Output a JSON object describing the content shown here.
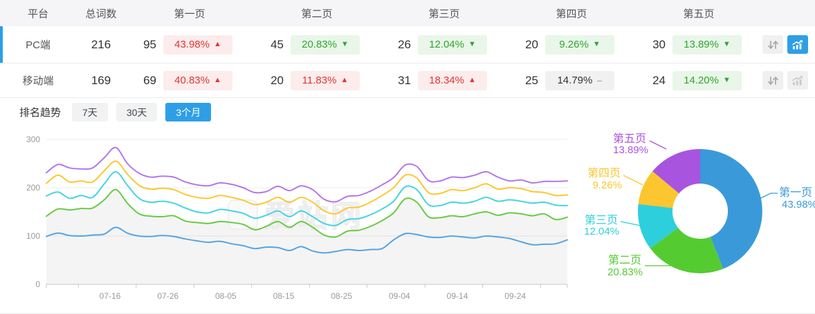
{
  "accent_color": "#2e9fe6",
  "table": {
    "columns": [
      "平台",
      "总词数",
      "第一页",
      "第二页",
      "第三页",
      "第四页",
      "第五页"
    ],
    "rows": [
      {
        "platform": "PC端",
        "total": "216",
        "selected": true,
        "trend_active": true,
        "pages": [
          {
            "count": "95",
            "pct": "43.98%",
            "dir": "up"
          },
          {
            "count": "45",
            "pct": "20.83%",
            "dir": "down"
          },
          {
            "count": "26",
            "pct": "12.04%",
            "dir": "down"
          },
          {
            "count": "20",
            "pct": "9.26%",
            "dir": "down"
          },
          {
            "count": "30",
            "pct": "13.89%",
            "dir": "down"
          }
        ]
      },
      {
        "platform": "移动端",
        "total": "169",
        "selected": false,
        "trend_active": false,
        "pages": [
          {
            "count": "69",
            "pct": "40.83%",
            "dir": "up"
          },
          {
            "count": "20",
            "pct": "11.83%",
            "dir": "up"
          },
          {
            "count": "31",
            "pct": "18.34%",
            "dir": "up"
          },
          {
            "count": "25",
            "pct": "14.79%",
            "dir": "flat"
          },
          {
            "count": "24",
            "pct": "14.20%",
            "dir": "down"
          }
        ]
      }
    ]
  },
  "trend": {
    "label": "排名趋势",
    "tabs": [
      {
        "label": "7天",
        "active": false
      },
      {
        "label": "30天",
        "active": false
      },
      {
        "label": "3个月",
        "active": true
      }
    ]
  },
  "watermark": "爱站网",
  "chart_data": [
    {
      "type": "line",
      "title": "排名趋势（3个月）",
      "x_tick_labels": [
        "07-16",
        "07-26",
        "08-05",
        "08-15",
        "08-25",
        "09-04",
        "09-14",
        "09-24"
      ],
      "x_tick_days": [
        11,
        21,
        31,
        41,
        51,
        61,
        71,
        81
      ],
      "day_span": [
        0,
        90
      ],
      "sample_day_step": 2,
      "ylim": [
        0,
        300
      ],
      "y_ticks": [
        0,
        100,
        200,
        300
      ],
      "grid": true,
      "legend_position": "none",
      "series": [
        {
          "name": "第一页",
          "color": "#55a5e3",
          "values": [
            99,
            106,
            101,
            100,
            102,
            104,
            118,
            106,
            100,
            99,
            101,
            99,
            94,
            90,
            87,
            89,
            84,
            80,
            74,
            77,
            76,
            70,
            78,
            69,
            65,
            68,
            72,
            70,
            72,
            74,
            92,
            105,
            103,
            98,
            97,
            100,
            98,
            96,
            100,
            98,
            95,
            88,
            82,
            83,
            84,
            92
          ]
        },
        {
          "name": "第二页",
          "color": "#66cc44",
          "area_fill": "rgba(0,0,0,0.045)",
          "values": [
            141,
            156,
            154,
            157,
            158,
            175,
            196,
            168,
            146,
            141,
            140,
            142,
            131,
            128,
            126,
            130,
            128,
            124,
            113,
            120,
            130,
            118,
            130,
            118,
            102,
            98,
            110,
            112,
            120,
            132,
            148,
            177,
            170,
            140,
            138,
            142,
            140,
            146,
            150,
            143,
            148,
            146,
            142,
            146,
            134,
            139
          ]
        },
        {
          "name": "第三页",
          "color": "#45d4e2",
          "values": [
            183,
            191,
            178,
            184,
            180,
            208,
            233,
            205,
            178,
            170,
            172,
            168,
            158,
            150,
            148,
            155,
            152,
            147,
            137,
            143,
            152,
            140,
            152,
            140,
            126,
            122,
            134,
            136,
            144,
            156,
            172,
            202,
            196,
            165,
            163,
            170,
            168,
            172,
            180,
            172,
            175,
            172,
            168,
            170,
            164,
            163
          ]
        },
        {
          "name": "第四页",
          "color": "#fcc733",
          "values": [
            209,
            226,
            212,
            214,
            212,
            235,
            255,
            228,
            205,
            197,
            199,
            196,
            186,
            180,
            178,
            184,
            180,
            174,
            165,
            170,
            180,
            170,
            180,
            170,
            152,
            146,
            158,
            160,
            170,
            184,
            200,
            226,
            220,
            190,
            188,
            196,
            194,
            200,
            208,
            197,
            200,
            198,
            192,
            190,
            184,
            185
          ]
        },
        {
          "name": "第五页",
          "color": "#b477e8",
          "values": [
            231,
            248,
            241,
            239,
            241,
            262,
            283,
            250,
            230,
            222,
            224,
            222,
            212,
            206,
            204,
            210,
            207,
            200,
            190,
            192,
            203,
            194,
            204,
            196,
            176,
            171,
            182,
            184,
            193,
            206,
            221,
            247,
            244,
            215,
            214,
            222,
            221,
            226,
            233,
            222,
            214,
            216,
            210,
            213,
            213,
            214
          ]
        }
      ]
    },
    {
      "type": "donut",
      "start_angle": "top",
      "direction": "clockwise",
      "label_format": "name + percent, outside leader lines",
      "series": [
        {
          "name": "第一页",
          "value": 43.98,
          "pct_label": "43.98%",
          "color": "#3a9ad9"
        },
        {
          "name": "第二页",
          "value": 20.83,
          "pct_label": "20.83%",
          "color": "#55cb32"
        },
        {
          "name": "第三页",
          "value": 12.04,
          "pct_label": "12.04%",
          "color": "#2dcfdc"
        },
        {
          "name": "第四页",
          "value": 9.26,
          "pct_label": "9.26%",
          "color": "#fbc62f"
        },
        {
          "name": "第五页",
          "value": 13.89,
          "pct_label": "13.89%",
          "color": "#a854df"
        }
      ]
    }
  ]
}
